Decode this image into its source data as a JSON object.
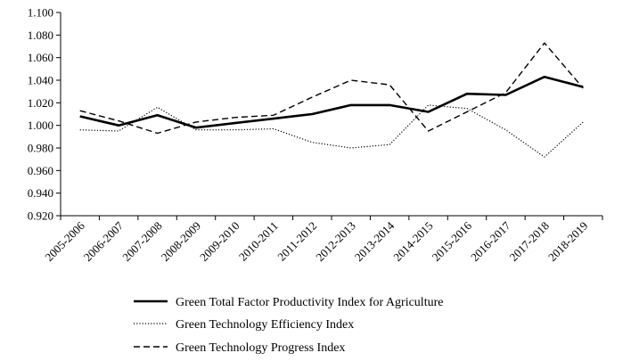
{
  "chart_data": {
    "type": "line",
    "title": "",
    "xlabel": "",
    "ylabel": "",
    "ylim": [
      0.92,
      1.1
    ],
    "yticks": [
      0.92,
      0.94,
      0.96,
      0.98,
      1.0,
      1.02,
      1.04,
      1.06,
      1.08,
      1.1
    ],
    "ytick_labels": [
      "0.920",
      "0.940",
      "0.960",
      "0.980",
      "1.000",
      "1.020",
      "1.040",
      "1.060",
      "1.080",
      "1.100"
    ],
    "grid": false,
    "legend_position": "bottom",
    "categories": [
      "2005-2006",
      "2006-2007",
      "2007-2008",
      "2008-2009",
      "2009-2010",
      "2010-2011",
      "2011-2012",
      "2012-2013",
      "2013-2014",
      "2014-2015",
      "2015-2016",
      "2016-2017",
      "2017-2018",
      "2018-2019"
    ],
    "series": [
      {
        "name": "Green Total Factor Productivity Index for Agriculture",
        "style": "solid",
        "color": "#000000",
        "values": [
          1.008,
          1.0,
          1.009,
          0.998,
          1.002,
          1.006,
          1.01,
          1.018,
          1.018,
          1.012,
          1.028,
          1.027,
          1.043,
          1.034
        ]
      },
      {
        "name": "Green Technology Efficiency Index",
        "style": "dotted",
        "color": "#000000",
        "values": [
          0.996,
          0.995,
          1.016,
          0.996,
          0.996,
          0.997,
          0.985,
          0.98,
          0.983,
          1.018,
          1.015,
          0.996,
          0.972,
          1.003
        ]
      },
      {
        "name": "Green Technology Progress Index",
        "style": "dashed",
        "color": "#000000",
        "values": [
          1.013,
          1.004,
          0.993,
          1.003,
          1.007,
          1.009,
          1.025,
          1.04,
          1.036,
          0.995,
          1.012,
          1.029,
          1.073,
          1.033
        ]
      }
    ]
  }
}
